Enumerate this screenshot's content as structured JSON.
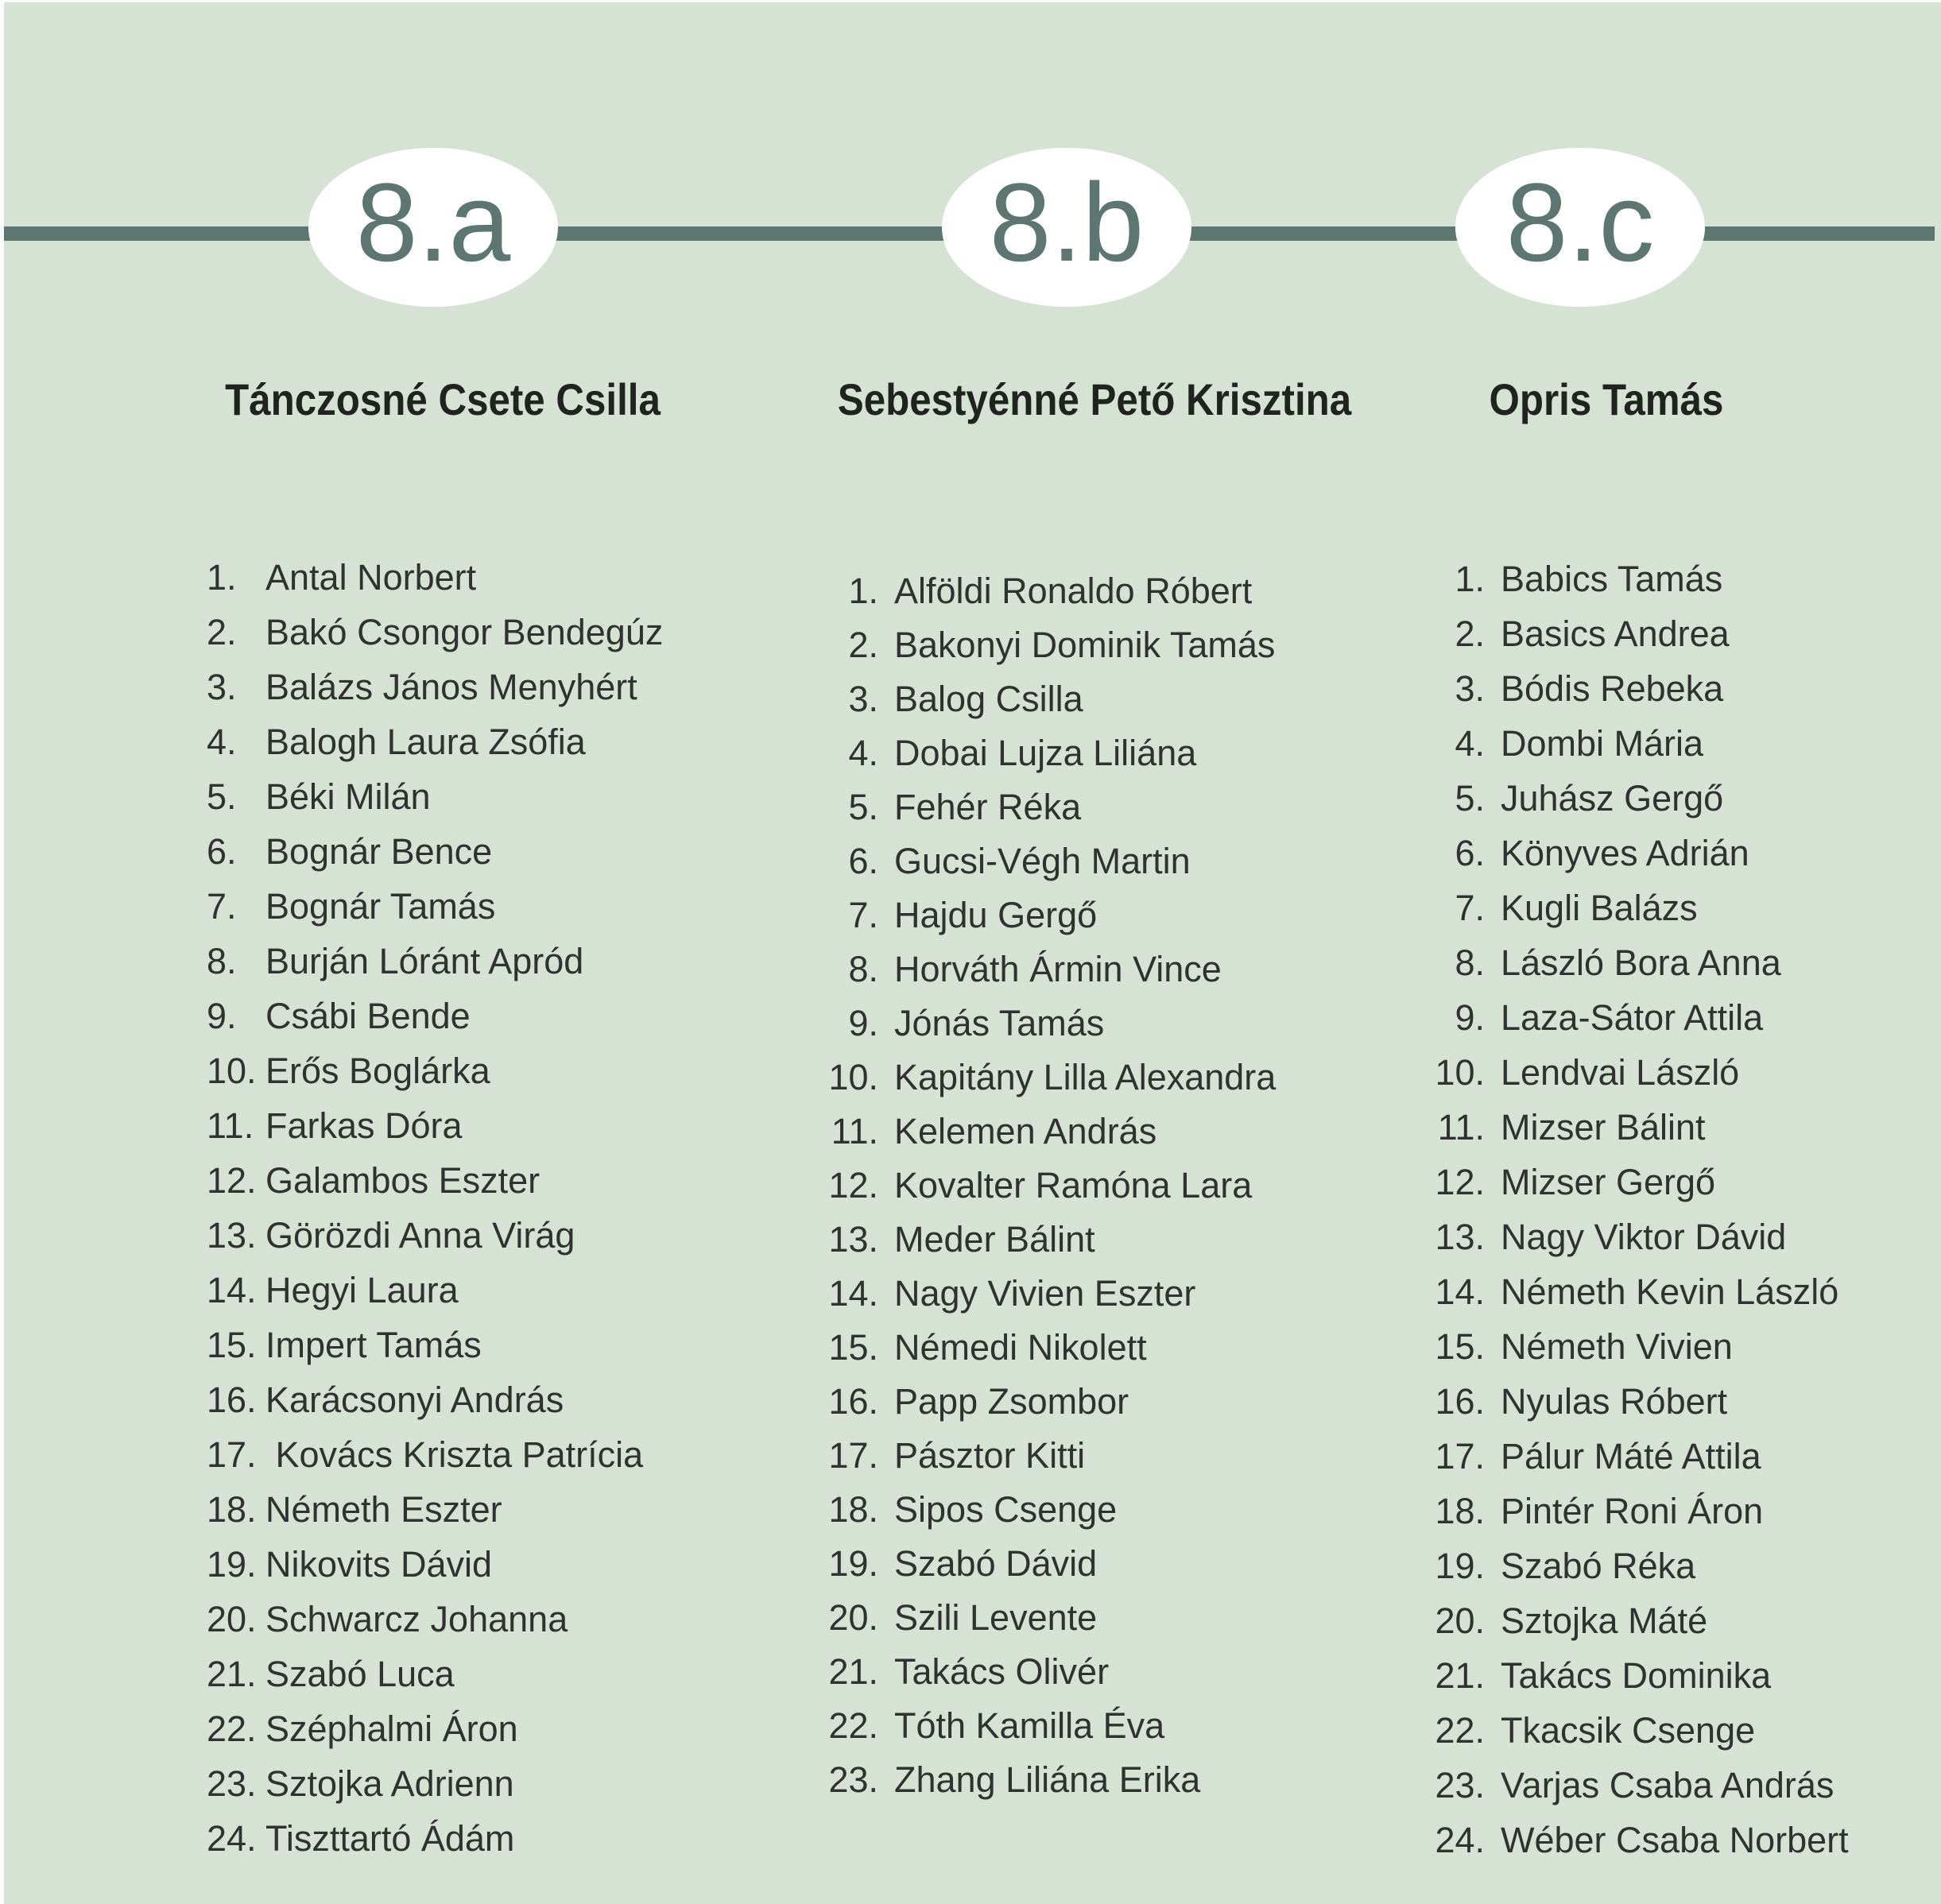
{
  "page": {
    "background_color": "#d6e3d4",
    "accent_color": "#5d7672",
    "badge_fill_color": "#ffffff",
    "header_text_color": "#20241f",
    "list_text_color": "#2e332f"
  },
  "classes": [
    {
      "badge": "8.a",
      "teacher": "Tánczosné Csete Csilla",
      "students": [
        "Antal Norbert",
        "Bakó Csongor Bendegúz",
        "Balázs János Menyhért",
        "Balogh Laura Zsófia",
        "Béki Milán",
        "Bognár Bence",
        "Bognár Tamás",
        "Burján Lóránt Apród",
        "Csábi Bende",
        "Erős Boglárka",
        "Farkas Dóra",
        "Galambos Eszter",
        "Görözdi Anna Virág",
        "Hegyi Laura",
        "Impert Tamás",
        "Karácsonyi András",
        " Kovács Kriszta Patrícia",
        "Németh Eszter",
        "Nikovits Dávid",
        "Schwarcz Johanna",
        "Szabó Luca",
        "Széphalmi Áron",
        "Sztojka Adrienn",
        "Tiszttartó Ádám"
      ]
    },
    {
      "badge": "8.b",
      "teacher": "Sebestyénné Pető Krisztina",
      "students": [
        "Alföldi Ronaldo Róbert",
        "Bakonyi Dominik Tamás",
        "Balog Csilla",
        "Dobai Lujza Liliána",
        "Fehér Réka",
        "Gucsi-Végh Martin",
        "Hajdu Gergő",
        "Horváth Ármin Vince",
        "Jónás Tamás",
        "Kapitány Lilla Alexandra",
        "Kelemen András",
        "Kovalter Ramóna Lara",
        "Meder Bálint",
        "Nagy Vivien Eszter",
        "Némedi Nikolett",
        "Papp Zsombor",
        "Pásztor Kitti",
        "Sipos Csenge",
        "Szabó Dávid",
        "Szili Levente",
        "Takács Olivér",
        "Tóth Kamilla Éva",
        "Zhang Liliána Erika"
      ]
    },
    {
      "badge": "8.c",
      "teacher": "Opris Tamás",
      "students": [
        "Babics Tamás",
        "Basics Andrea",
        "Bódis Rebeka",
        "Dombi Mária",
        "Juhász Gergő",
        "Könyves Adrián",
        "Kugli Balázs",
        "László Bora Anna",
        "Laza-Sátor Attila",
        "Lendvai László",
        "Mizser Bálint",
        "Mizser Gergő",
        "Nagy Viktor Dávid",
        "Németh Kevin László",
        "Németh Vivien",
        "Nyulas Róbert",
        "Pálur Máté Attila",
        "Pintér Roni Áron",
        "Szabó Réka",
        "Sztojka Máté",
        "Takács Dominika",
        "Tkacsik Csenge",
        "Varjas Csaba András",
        "Wéber Csaba Norbert"
      ]
    }
  ]
}
